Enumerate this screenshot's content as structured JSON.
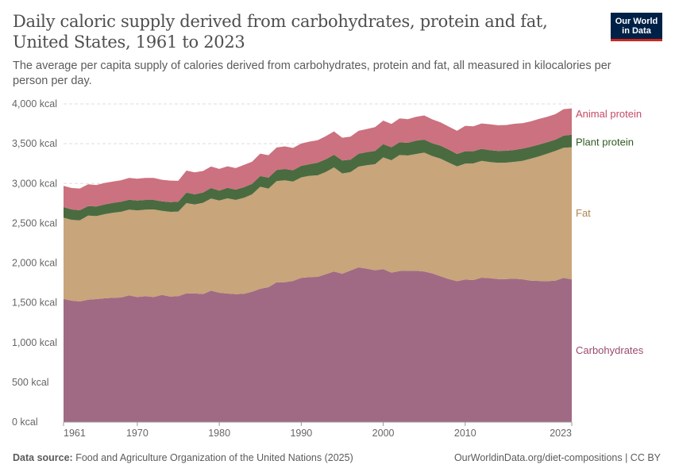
{
  "header": {
    "title": "Daily caloric supply derived from carbohydrates, protein and fat, United States, 1961 to 2023",
    "subtitle": "The average per capita supply of calories derived from carbohydrates, protein and fat, all measured in kilocalories per person per day.",
    "logo_line1": "Our World",
    "logo_line2": "in Data"
  },
  "footer": {
    "source_label": "Data source:",
    "source_text": "Food and Agriculture Organization of the United Nations (2025)",
    "url_license": "OurWorldinData.org/diet-compositions | CC BY"
  },
  "chart_data": {
    "type": "area",
    "stacked": true,
    "ylim": [
      0,
      4000
    ],
    "xlim": [
      1961,
      2023
    ],
    "grid": "horizontal dashed",
    "legend": "right (inline labels)",
    "y_ticks": [
      0,
      500,
      1000,
      1500,
      2000,
      2500,
      3000,
      3500,
      4000
    ],
    "y_tick_labels": [
      "0 kcal",
      "500 kcal",
      "1,000 kcal",
      "1,500 kcal",
      "2,000 kcal",
      "2,500 kcal",
      "3,000 kcal",
      "3,500 kcal",
      "4,000 kcal"
    ],
    "x_ticks": [
      1961,
      1970,
      1980,
      1990,
      2000,
      2010,
      2023
    ],
    "x_tick_labels": [
      "1961",
      "1970",
      "1980",
      "1990",
      "2000",
      "2010",
      "2023"
    ],
    "x": [
      1961,
      1962,
      1963,
      1964,
      1965,
      1966,
      1967,
      1968,
      1969,
      1970,
      1971,
      1972,
      1973,
      1974,
      1975,
      1976,
      1977,
      1978,
      1979,
      1980,
      1981,
      1982,
      1983,
      1984,
      1985,
      1986,
      1987,
      1988,
      1989,
      1990,
      1991,
      1992,
      1993,
      1994,
      1995,
      1996,
      1997,
      1998,
      1999,
      2000,
      2001,
      2002,
      2003,
      2004,
      2005,
      2006,
      2007,
      2008,
      2009,
      2010,
      2011,
      2012,
      2013,
      2014,
      2015,
      2016,
      2017,
      2018,
      2019,
      2020,
      2021,
      2022,
      2023
    ],
    "series": [
      {
        "name": "Carbohydrates",
        "color": "#a06a84",
        "label_color": "#9a4a6e",
        "values": [
          1549,
          1526,
          1516,
          1539,
          1546,
          1556,
          1562,
          1566,
          1592,
          1572,
          1582,
          1572,
          1599,
          1579,
          1582,
          1619,
          1619,
          1609,
          1652,
          1626,
          1616,
          1609,
          1612,
          1639,
          1676,
          1696,
          1759,
          1759,
          1775,
          1812,
          1822,
          1825,
          1859,
          1892,
          1865,
          1905,
          1945,
          1929,
          1909,
          1922,
          1879,
          1899,
          1902,
          1902,
          1892,
          1869,
          1832,
          1799,
          1772,
          1792,
          1786,
          1815,
          1809,
          1799,
          1799,
          1802,
          1795,
          1779,
          1775,
          1772,
          1779,
          1812,
          1795
        ]
      },
      {
        "name": "Fat",
        "color": "#c8a57a",
        "label_color": "#b08550",
        "values": [
          1021,
          1017,
          1021,
          1057,
          1044,
          1057,
          1068,
          1077,
          1078,
          1088,
          1088,
          1101,
          1057,
          1064,
          1064,
          1134,
          1117,
          1147,
          1158,
          1160,
          1197,
          1184,
          1207,
          1224,
          1283,
          1240,
          1270,
          1280,
          1248,
          1264,
          1274,
          1277,
          1286,
          1310,
          1261,
          1237,
          1267,
          1300,
          1333,
          1406,
          1413,
          1459,
          1450,
          1469,
          1496,
          1476,
          1480,
          1463,
          1443,
          1457,
          1466,
          1470,
          1460,
          1460,
          1463,
          1470,
          1490,
          1533,
          1566,
          1603,
          1629,
          1636,
          1660
        ]
      },
      {
        "name": "Plant protein",
        "color": "#4a6b40",
        "label_color": "#2f5a21",
        "values": [
          133,
          130,
          126,
          120,
          120,
          123,
          126,
          127,
          126,
          126,
          123,
          120,
          120,
          123,
          124,
          133,
          127,
          130,
          133,
          124,
          133,
          130,
          134,
          133,
          134,
          137,
          140,
          143,
          143,
          146,
          146,
          160,
          160,
          160,
          163,
          157,
          163,
          166,
          166,
          167,
          163,
          160,
          159,
          167,
          163,
          160,
          163,
          163,
          157,
          156,
          153,
          150,
          149,
          149,
          149,
          149,
          153,
          149,
          147,
          143,
          143,
          153,
          159
        ]
      },
      {
        "name": "Animal protein",
        "color": "#cc717f",
        "label_color": "#c64a64",
        "values": [
          267,
          270,
          274,
          274,
          270,
          270,
          267,
          270,
          274,
          274,
          277,
          277,
          270,
          270,
          263,
          276,
          277,
          270,
          270,
          273,
          270,
          270,
          280,
          277,
          283,
          283,
          283,
          284,
          280,
          280,
          284,
          282,
          290,
          293,
          286,
          290,
          287,
          290,
          300,
          296,
          293,
          300,
          297,
          300,
          304,
          300,
          293,
          290,
          290,
          320,
          313,
          320,
          327,
          324,
          324,
          330,
          320,
          320,
          323,
          320,
          320,
          333,
          330
        ]
      }
    ]
  }
}
